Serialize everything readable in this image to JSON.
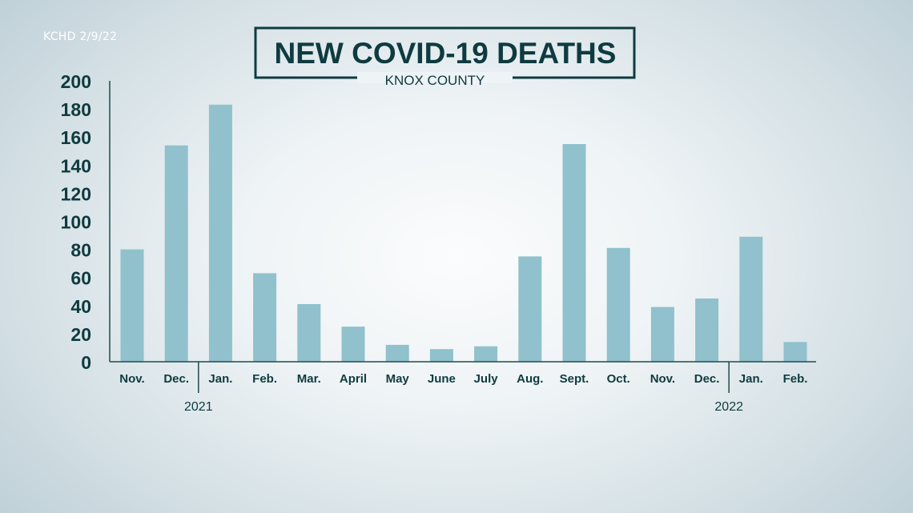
{
  "source_label": "KCHD 2/9/22",
  "chart_data": {
    "type": "bar",
    "title": "NEW COVID-19 DEATHS",
    "subtitle": "KNOX COUNTY",
    "categories": [
      "Nov.",
      "Dec.",
      "Jan.",
      "Feb.",
      "Mar.",
      "April",
      "May",
      "June",
      "July",
      "Aug.",
      "Sept.",
      "Oct.",
      "Nov.",
      "Dec.",
      "Jan.",
      "Feb."
    ],
    "values": [
      80,
      154,
      183,
      63,
      41,
      25,
      12,
      9,
      11,
      75,
      155,
      81,
      39,
      45,
      89,
      14
    ],
    "year_labels": [
      "2021",
      "2022"
    ],
    "ylim": [
      0,
      200
    ],
    "yticks": [
      0,
      20,
      40,
      60,
      80,
      100,
      120,
      140,
      160,
      180,
      200
    ],
    "grid": false,
    "colors": {
      "bar": "#90c1cc",
      "text": "#0e3b3f",
      "axis": "#1f4a4e",
      "title_box": "#0e3b3f"
    }
  }
}
